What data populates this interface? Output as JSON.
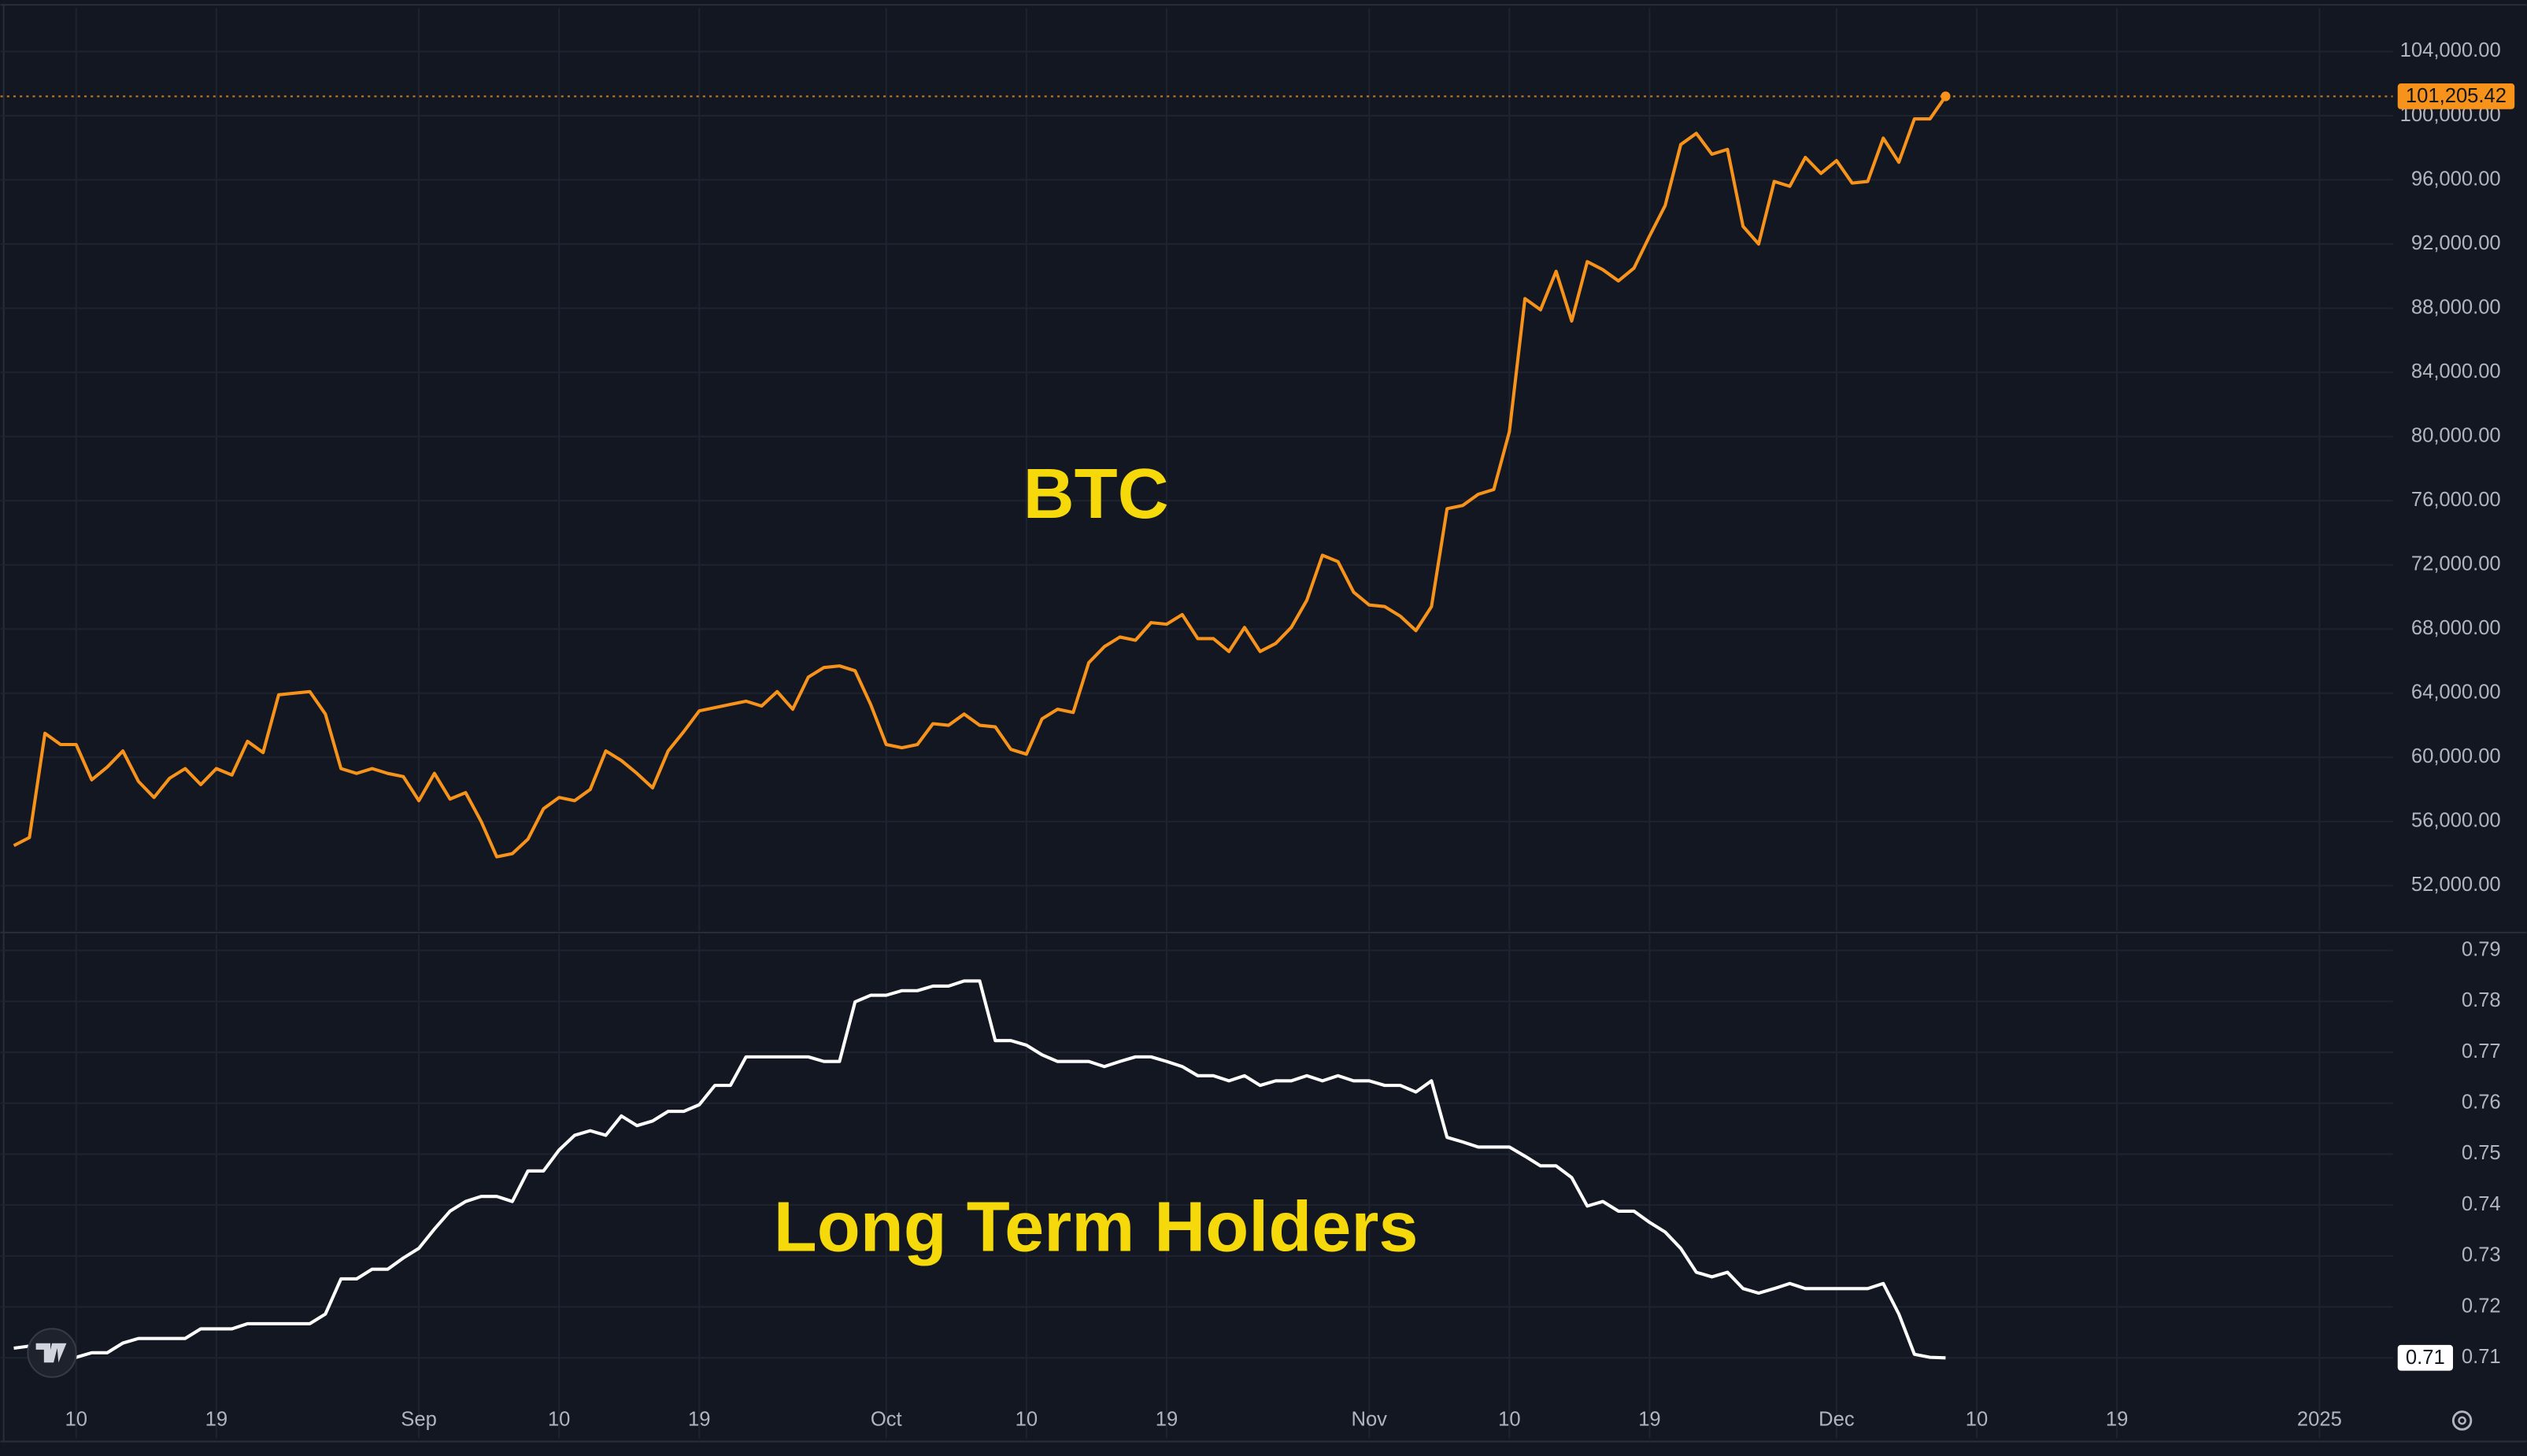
{
  "chart_data": {
    "type": "line",
    "categories": [
      null,
      null,
      null,
      null,
      "10",
      null,
      null,
      null,
      null,
      null,
      null,
      null,
      null,
      "19",
      null,
      null,
      null,
      null,
      null,
      null,
      null,
      null,
      null,
      null,
      null,
      null,
      "Sep",
      null,
      null,
      null,
      null,
      null,
      null,
      null,
      null,
      "10",
      null,
      null,
      null,
      null,
      null,
      null,
      null,
      null,
      "19",
      null,
      null,
      null,
      null,
      null,
      null,
      null,
      null,
      null,
      null,
      null,
      "Oct",
      null,
      null,
      null,
      null,
      null,
      null,
      null,
      null,
      "10",
      null,
      null,
      null,
      null,
      null,
      null,
      null,
      null,
      "19",
      null,
      null,
      null,
      null,
      null,
      null,
      null,
      null,
      null,
      null,
      null,
      null,
      "Nov",
      null,
      null,
      null,
      null,
      null,
      null,
      null,
      null,
      "10",
      null,
      null,
      null,
      null,
      null,
      null,
      null,
      null,
      "19",
      null,
      null,
      null,
      null,
      null,
      null,
      null,
      null,
      null,
      null,
      null,
      "Dec",
      null,
      null,
      null,
      null,
      null,
      null,
      null,
      null,
      "10",
      null,
      null,
      null,
      null,
      null,
      null,
      null,
      null,
      "19",
      null,
      null,
      null,
      null,
      null,
      null,
      null,
      null,
      null,
      null,
      null,
      null,
      "2025",
      null,
      null,
      null,
      null
    ],
    "series": [
      {
        "name": "BTC",
        "color": "#f7931a",
        "values": [
          54500,
          55000,
          61500,
          60800,
          60800,
          58600,
          59400,
          60400,
          58500,
          57500,
          58700,
          59300,
          58300,
          59300,
          58900,
          61000,
          60300,
          63900,
          64000,
          64100,
          62700,
          59300,
          59000,
          59300,
          59000,
          58800,
          57300,
          59000,
          57400,
          57800,
          56000,
          53800,
          54000,
          54900,
          56800,
          57500,
          57300,
          58000,
          60400,
          59800,
          59000,
          58100,
          60400,
          61600,
          62900,
          63100,
          63300,
          63500,
          63200,
          64100,
          63000,
          65000,
          65600,
          65700,
          65400,
          63300,
          60800,
          60600,
          60800,
          62100,
          62000,
          62700,
          62000,
          61900,
          60500,
          60200,
          62400,
          63000,
          62800,
          65900,
          66900,
          67500,
          67300,
          68400,
          68300,
          68900,
          67400,
          67400,
          66600,
          68100,
          66600,
          67100,
          68100,
          69800,
          72600,
          72200,
          70300,
          69500,
          69400,
          68800,
          67900,
          69400,
          75500,
          75700,
          76400,
          76700,
          80300,
          88600,
          87900,
          90300,
          87200,
          90900,
          90400,
          89700,
          90500,
          92500,
          94400,
          98200,
          98900,
          97600,
          97900,
          93100,
          92000,
          95900,
          95600,
          97400,
          96400,
          97200,
          95800,
          95900,
          98600,
          97100,
          99800,
          99800,
          101205.42,
          null,
          null,
          null,
          null,
          null,
          null,
          null,
          null,
          null,
          null,
          null,
          null,
          null,
          null,
          null,
          null,
          null,
          null,
          null,
          null,
          null,
          null,
          null,
          null,
          null,
          null,
          null,
          null
        ],
        "value_labels": [
          null,
          null,
          null,
          null,
          null,
          null,
          null,
          null,
          null,
          null,
          null,
          null,
          null,
          null,
          null,
          null,
          null,
          null,
          null,
          null,
          null,
          null,
          null,
          null,
          null,
          null,
          null,
          null,
          null,
          null,
          null,
          null,
          null,
          null,
          null,
          null,
          null,
          null,
          null,
          null,
          null,
          null,
          null,
          null,
          null,
          null,
          null,
          null,
          null,
          null,
          null,
          null,
          null,
          null,
          null,
          null,
          null,
          null,
          null,
          null,
          null,
          null,
          null,
          null,
          null,
          null,
          null,
          null,
          null,
          null,
          null,
          null,
          null,
          null,
          null,
          null,
          null,
          null,
          null,
          null,
          null,
          null,
          null,
          null,
          null,
          null,
          null,
          null,
          null,
          null,
          null,
          null,
          null,
          null,
          null,
          null,
          null,
          null,
          null,
          null,
          null,
          null,
          null,
          null,
          null,
          null,
          null,
          null,
          null,
          null,
          null,
          null,
          null,
          null,
          null,
          null,
          null,
          null,
          null,
          null,
          null,
          null,
          null,
          null,
          "101,205.42",
          null,
          null,
          null,
          null,
          null,
          null,
          null,
          null,
          null,
          null,
          null,
          null,
          null,
          null,
          null,
          null,
          null,
          null,
          null,
          null,
          null,
          null,
          null,
          null,
          null,
          null,
          null,
          null
        ]
      },
      {
        "name": "Long Term Holders",
        "color": "#ffffff",
        "axis": "y2",
        "values": [
          0.7119,
          0.7123,
          0.7101,
          0.7101,
          0.7101,
          0.711,
          0.711,
          0.7129,
          0.7138,
          0.7138,
          0.7138,
          0.7138,
          0.7157,
          0.7157,
          0.7157,
          0.7167,
          0.7167,
          0.7167,
          0.7167,
          0.7167,
          0.7186,
          0.7255,
          0.7255,
          0.7274,
          0.7274,
          0.7296,
          0.7315,
          0.7353,
          0.7388,
          0.7407,
          0.7417,
          0.7417,
          0.7407,
          0.7467,
          0.7467,
          0.7508,
          0.7537,
          0.7546,
          0.7537,
          0.7575,
          0.7556,
          0.7565,
          0.7584,
          0.7584,
          0.7597,
          0.7635,
          0.7635,
          0.7691,
          0.7691,
          0.7691,
          0.7691,
          0.7691,
          0.7682,
          0.7682,
          0.7799,
          0.7812,
          0.7812,
          0.7821,
          0.7821,
          0.783,
          0.783,
          0.784,
          0.784,
          0.7723,
          0.7723,
          0.7714,
          0.7695,
          0.7682,
          0.7682,
          0.7682,
          0.7672,
          0.7682,
          0.7691,
          0.7691,
          0.7682,
          0.7672,
          0.7654,
          0.7654,
          0.7644,
          0.7654,
          0.7635,
          0.7644,
          0.7644,
          0.7654,
          0.7644,
          0.7654,
          0.7644,
          0.7644,
          0.7635,
          0.7635,
          0.7622,
          0.7644,
          0.7533,
          0.7524,
          0.7514,
          0.7514,
          0.7514,
          0.7496,
          0.7477,
          0.7477,
          0.7454,
          0.7398,
          0.7407,
          0.7388,
          0.7388,
          0.7366,
          0.7347,
          0.7315,
          0.7268,
          0.7259,
          0.7268,
          0.7236,
          0.7227,
          0.7236,
          0.7246,
          0.7236,
          0.7236,
          0.7236,
          0.7236,
          0.7236,
          0.7246,
          0.7186,
          0.7107,
          0.7101,
          0.71,
          null,
          null,
          null,
          null,
          null,
          null,
          null,
          null,
          null,
          null,
          null,
          null,
          null,
          null,
          null,
          null,
          null,
          null,
          null,
          null,
          null,
          null,
          null,
          null,
          null,
          null,
          null,
          null
        ]
      }
    ],
    "ylim": [
      49180,
      106710
    ],
    "yticks": [
      {
        "value": 52000,
        "label": "52,000.00"
      },
      {
        "value": 56000,
        "label": "56,000.00"
      },
      {
        "value": 60000,
        "label": "60,000.00"
      },
      {
        "value": 64000,
        "label": "64,000.00"
      },
      {
        "value": 68000,
        "label": "68,000.00"
      },
      {
        "value": 72000,
        "label": "72,000.00"
      },
      {
        "value": 76000,
        "label": "76,000.00"
      },
      {
        "value": 80000,
        "label": "80,000.00"
      },
      {
        "value": 84000,
        "label": "84,000.00"
      },
      {
        "value": 88000,
        "label": "88,000.00"
      },
      {
        "value": 92000,
        "label": "92,000.00"
      },
      {
        "value": 96000,
        "label": "96,000.00"
      },
      {
        "value": 100000,
        "label": "100,000.00"
      },
      {
        "value": 104000,
        "label": "104,000.00"
      }
    ],
    "y2lim": [
      0.6942,
      0.7932
    ],
    "y2ticks": [
      0.71,
      0.72,
      0.73,
      0.74,
      0.75,
      0.76,
      0.77,
      0.78,
      0.79
    ],
    "grid": true
  }
}
